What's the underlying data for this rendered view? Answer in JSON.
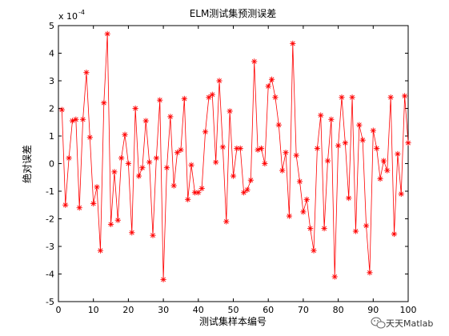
{
  "chart_data": {
    "type": "line",
    "title": "ELM测试集预测误差",
    "xlabel": "测试集样本编号",
    "ylabel": "绝对误差",
    "exponent_base": "x 10",
    "exponent_power": "-4",
    "xlim": [
      0,
      100
    ],
    "ylim": [
      -5,
      5
    ],
    "xticks": [
      "0",
      "10",
      "20",
      "30",
      "40",
      "50",
      "60",
      "70",
      "80",
      "90",
      "100"
    ],
    "yticks": [
      "-5",
      "-4",
      "-3",
      "-2",
      "-1",
      "0",
      "1",
      "2",
      "3",
      "4",
      "5"
    ],
    "grid": false,
    "legend": "none",
    "marker": "asterisk",
    "series": [
      {
        "color": "#ff0000",
        "x": [
          1,
          2,
          3,
          4,
          5,
          6,
          7,
          8,
          9,
          10,
          11,
          12,
          13,
          14,
          15,
          16,
          17,
          18,
          19,
          20,
          21,
          22,
          23,
          24,
          25,
          26,
          27,
          28,
          29,
          30,
          31,
          32,
          33,
          34,
          35,
          36,
          37,
          38,
          39,
          40,
          41,
          42,
          43,
          44,
          45,
          46,
          47,
          48,
          49,
          50,
          51,
          52,
          53,
          54,
          55,
          56,
          57,
          58,
          59,
          60,
          61,
          62,
          63,
          64,
          65,
          66,
          67,
          68,
          69,
          70,
          71,
          72,
          73,
          74,
          75,
          76,
          77,
          78,
          79,
          80,
          81,
          82,
          83,
          84,
          85,
          86,
          87,
          88,
          89,
          90,
          91,
          92,
          93,
          94,
          95,
          96,
          97,
          98,
          99,
          100
        ],
        "values": [
          1.95,
          -1.5,
          0.2,
          1.55,
          1.6,
          -1.6,
          1.6,
          3.3,
          0.95,
          -1.45,
          -0.85,
          -3.15,
          2.2,
          4.7,
          -2.2,
          -0.3,
          -2.05,
          0.2,
          1.05,
          0.0,
          -2.5,
          2.0,
          -0.45,
          -0.15,
          1.55,
          0.05,
          -2.6,
          0.2,
          2.3,
          -4.2,
          -0.15,
          1.7,
          -0.8,
          0.4,
          0.5,
          2.35,
          -1.3,
          -0.05,
          -1.05,
          -1.05,
          -0.9,
          1.15,
          2.4,
          2.5,
          0.05,
          3.0,
          0.6,
          -2.1,
          1.9,
          -0.45,
          0.55,
          0.55,
          -1.05,
          -0.95,
          -0.6,
          3.7,
          0.5,
          0.55,
          0.0,
          2.8,
          3.05,
          2.4,
          1.4,
          -0.25,
          0.4,
          -1.9,
          4.35,
          0.3,
          -0.65,
          -1.75,
          -1.3,
          -2.35,
          -3.15,
          0.55,
          1.75,
          -2.35,
          0.1,
          1.6,
          -4.1,
          0.65,
          2.4,
          0.75,
          -1.25,
          2.4,
          -2.45,
          1.4,
          0.85,
          -2.25,
          -3.95,
          1.2,
          0.55,
          -0.55,
          0.1,
          -0.25,
          2.4,
          -2.55,
          0.35,
          -1.1,
          2.45,
          0.75
        ]
      }
    ]
  },
  "watermark": {
    "icon": "wechat-icon",
    "text": "天天Matlab"
  }
}
